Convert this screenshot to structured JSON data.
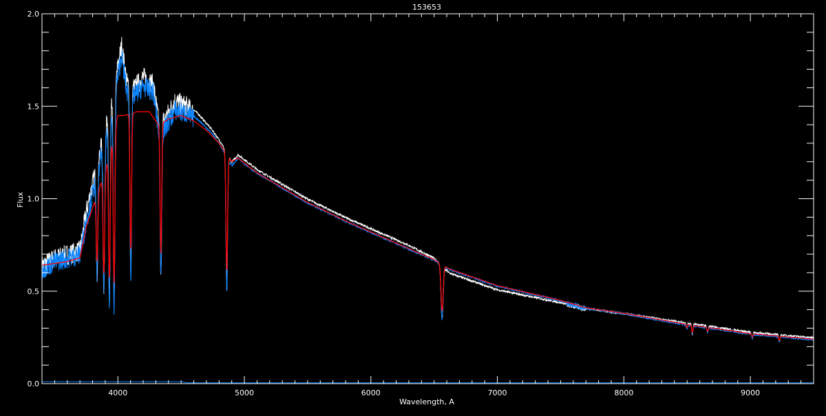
{
  "chart_data": {
    "type": "line",
    "title": "153653",
    "xlabel": "Wavelength, A",
    "ylabel": "Flux",
    "xlim": [
      3400,
      9500
    ],
    "ylim": [
      0.0,
      2.0
    ],
    "xticks": [
      4000,
      5000,
      6000,
      7000,
      8000,
      9000
    ],
    "xtick_labels": [
      "4000",
      "5000",
      "6000",
      "7000",
      "8000",
      "9000"
    ],
    "yticks": [
      0.0,
      0.5,
      1.0,
      1.5,
      2.0
    ],
    "ytick_labels": [
      "0.0",
      "0.5",
      "1.0",
      "1.5",
      "2.0"
    ],
    "grid": false,
    "background": "#000000",
    "absorption_lines": [
      {
        "wavelength": 3835,
        "min_flux": 0.6
      },
      {
        "wavelength": 3889,
        "min_flux": 0.5
      },
      {
        "wavelength": 3933,
        "min_flux": 0.45
      },
      {
        "wavelength": 3970,
        "min_flux": 0.4
      },
      {
        "wavelength": 4102,
        "min_flux": 0.6
      },
      {
        "wavelength": 4340,
        "min_flux": 0.58
      },
      {
        "wavelength": 4861,
        "min_flux": 0.5
      },
      {
        "wavelength": 6563,
        "min_flux": 0.35
      },
      {
        "wavelength": 8498,
        "min_flux": 0.3
      },
      {
        "wavelength": 8542,
        "min_flux": 0.27
      },
      {
        "wavelength": 8662,
        "min_flux": 0.28
      },
      {
        "wavelength": 8750,
        "min_flux": 0.3
      },
      {
        "wavelength": 8863,
        "min_flux": 0.29
      },
      {
        "wavelength": 9015,
        "min_flux": 0.25
      },
      {
        "wavelength": 9229,
        "min_flux": 0.23
      }
    ],
    "series": [
      {
        "color": "#ffffff",
        "continuum": [
          [
            3400,
            0.66
          ],
          [
            3500,
            0.7
          ],
          [
            3600,
            0.72
          ],
          [
            3700,
            0.74
          ],
          [
            3750,
            0.95
          ],
          [
            3800,
            1.1
          ],
          [
            3850,
            1.25
          ],
          [
            3900,
            1.4
          ],
          [
            3950,
            1.55
          ],
          [
            3990,
            1.7
          ],
          [
            4030,
            1.85
          ],
          [
            4070,
            1.65
          ],
          [
            4130,
            1.62
          ],
          [
            4200,
            1.68
          ],
          [
            4280,
            1.64
          ],
          [
            4320,
            1.45
          ],
          [
            4370,
            1.45
          ],
          [
            4450,
            1.55
          ],
          [
            4550,
            1.52
          ],
          [
            4650,
            1.45
          ],
          [
            4750,
            1.37
          ],
          [
            4820,
            1.3
          ],
          [
            4900,
            1.2
          ],
          [
            4950,
            1.24
          ],
          [
            5100,
            1.16
          ],
          [
            5300,
            1.08
          ],
          [
            5500,
            1.0
          ],
          [
            5800,
            0.9
          ],
          [
            6000,
            0.84
          ],
          [
            6300,
            0.75
          ],
          [
            6500,
            0.68
          ],
          [
            6620,
            0.6
          ],
          [
            7000,
            0.51
          ],
          [
            7500,
            0.44
          ],
          [
            7700,
            0.41
          ],
          [
            8000,
            0.38
          ],
          [
            8500,
            0.33
          ],
          [
            9000,
            0.28
          ],
          [
            9500,
            0.25
          ]
        ]
      },
      {
        "color": "#0a84ff",
        "continuum": [
          [
            3400,
            0.64
          ],
          [
            3500,
            0.68
          ],
          [
            3600,
            0.7
          ],
          [
            3700,
            0.72
          ],
          [
            3750,
            0.9
          ],
          [
            3800,
            1.05
          ],
          [
            3850,
            1.2
          ],
          [
            3900,
            1.35
          ],
          [
            3950,
            1.5
          ],
          [
            3990,
            1.65
          ],
          [
            4030,
            1.8
          ],
          [
            4070,
            1.6
          ],
          [
            4130,
            1.58
          ],
          [
            4200,
            1.63
          ],
          [
            4280,
            1.6
          ],
          [
            4320,
            1.4
          ],
          [
            4370,
            1.4
          ],
          [
            4450,
            1.5
          ],
          [
            4550,
            1.48
          ],
          [
            4650,
            1.42
          ],
          [
            4750,
            1.35
          ],
          [
            4820,
            1.28
          ],
          [
            4900,
            1.18
          ],
          [
            4950,
            1.22
          ],
          [
            5100,
            1.14
          ],
          [
            5300,
            1.06
          ],
          [
            5500,
            0.98
          ],
          [
            5800,
            0.88
          ],
          [
            6000,
            0.82
          ],
          [
            6300,
            0.73
          ],
          [
            6500,
            0.67
          ],
          [
            6620,
            0.62
          ],
          [
            7000,
            0.53
          ],
          [
            7500,
            0.45
          ],
          [
            7700,
            0.41
          ],
          [
            8000,
            0.38
          ],
          [
            8500,
            0.32
          ],
          [
            9000,
            0.27
          ],
          [
            9500,
            0.24
          ]
        ]
      },
      {
        "color": "#ff0000",
        "continuum": [
          [
            3400,
            0.64
          ],
          [
            3600,
            0.66
          ],
          [
            3700,
            0.68
          ],
          [
            3750,
            0.85
          ],
          [
            3800,
            0.95
          ],
          [
            3850,
            1.05
          ],
          [
            3900,
            1.15
          ],
          [
            3950,
            1.3
          ],
          [
            4000,
            1.45
          ],
          [
            4050,
            1.45
          ],
          [
            4150,
            1.47
          ],
          [
            4250,
            1.47
          ],
          [
            4320,
            1.4
          ],
          [
            4400,
            1.43
          ],
          [
            4500,
            1.45
          ],
          [
            4600,
            1.42
          ],
          [
            4700,
            1.37
          ],
          [
            4800,
            1.3
          ],
          [
            4900,
            1.2
          ],
          [
            4950,
            1.22
          ],
          [
            5100,
            1.14
          ],
          [
            5300,
            1.06
          ],
          [
            5500,
            0.98
          ],
          [
            5800,
            0.88
          ],
          [
            6000,
            0.82
          ],
          [
            6300,
            0.73
          ],
          [
            6500,
            0.67
          ],
          [
            6620,
            0.62
          ],
          [
            7000,
            0.53
          ],
          [
            7500,
            0.45
          ],
          [
            7700,
            0.41
          ],
          [
            8000,
            0.38
          ],
          [
            8500,
            0.32
          ],
          [
            9000,
            0.27
          ],
          [
            9500,
            0.24
          ]
        ]
      },
      {
        "color": "#0a84ff",
        "continuum": [
          [
            3400,
            0.01
          ],
          [
            4500,
            0.01
          ],
          [
            4550,
            0.005
          ],
          [
            9500,
            0.005
          ]
        ]
      }
    ]
  }
}
